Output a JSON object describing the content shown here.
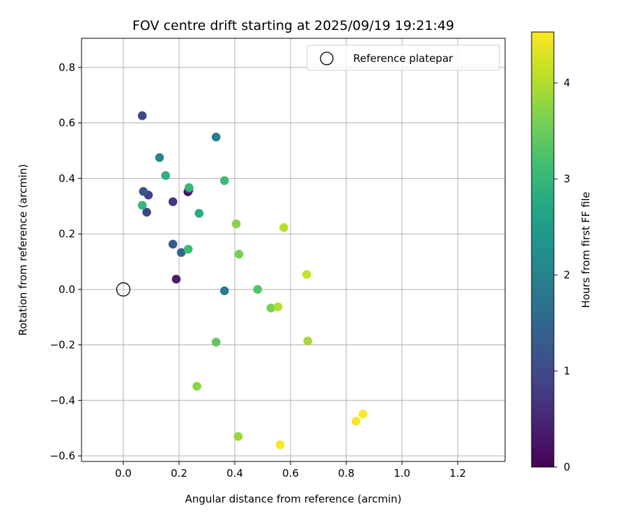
{
  "chart_data": {
    "type": "scatter",
    "title": "FOV centre drift starting at 2025/09/19 19:21:49",
    "xlabel": "Angular distance from reference (arcmin)",
    "ylabel": "Rotation from reference (arcmin)",
    "xlim": [
      -0.15,
      1.37
    ],
    "ylim": [
      -0.62,
      0.905
    ],
    "xticks": [
      0.0,
      0.2,
      0.4,
      0.6,
      0.8,
      1.0,
      1.2
    ],
    "xtick_labels": [
      "0.0",
      "0.2",
      "0.4",
      "0.6",
      "0.8",
      "1.0",
      "1.2"
    ],
    "yticks": [
      -0.6,
      -0.4,
      -0.2,
      0.0,
      0.2,
      0.4,
      0.6,
      0.8
    ],
    "ytick_labels": [
      "−0.6",
      "−0.4",
      "−0.2",
      "0.0",
      "0.2",
      "0.4",
      "0.6",
      "0.8"
    ],
    "grid": true,
    "legend": {
      "position": "top-right",
      "label": "Reference platepar"
    },
    "reference_point": {
      "x": 0.0,
      "y": 0.0
    },
    "colorbar": {
      "label": "Hours from first FF file",
      "range": [
        0,
        4.53
      ],
      "ticks": [
        0,
        1,
        2,
        3,
        4
      ],
      "tick_labels": [
        "0",
        "1",
        "2",
        "3",
        "4"
      ],
      "colormap": "viridis"
    },
    "points": [
      {
        "x": 0.232,
        "y": 0.352,
        "h": 0.0
      },
      {
        "x": 0.19,
        "y": 0.037,
        "h": 0.35
      },
      {
        "x": 0.235,
        "y": 0.358,
        "h": 0.5
      },
      {
        "x": 0.178,
        "y": 0.316,
        "h": 0.75
      },
      {
        "x": 0.09,
        "y": 0.34,
        "h": 0.85
      },
      {
        "x": 0.084,
        "y": 0.278,
        "h": 0.95
      },
      {
        "x": 0.068,
        "y": 0.626,
        "h": 1.0
      },
      {
        "x": 0.072,
        "y": 0.353,
        "h": 1.2
      },
      {
        "x": 0.178,
        "y": 0.163,
        "h": 1.3
      },
      {
        "x": 0.208,
        "y": 0.133,
        "h": 1.5
      },
      {
        "x": 0.363,
        "y": -0.005,
        "h": 1.9
      },
      {
        "x": 0.333,
        "y": 0.549,
        "h": 2.0
      },
      {
        "x": 0.13,
        "y": 0.475,
        "h": 2.05
      },
      {
        "x": 0.272,
        "y": 0.274,
        "h": 2.8
      },
      {
        "x": 0.152,
        "y": 0.41,
        "h": 2.9
      },
      {
        "x": 0.236,
        "y": 0.367,
        "h": 3.0
      },
      {
        "x": 0.068,
        "y": 0.303,
        "h": 3.0
      },
      {
        "x": 0.233,
        "y": 0.145,
        "h": 3.1
      },
      {
        "x": 0.363,
        "y": 0.392,
        "h": 3.05
      },
      {
        "x": 0.482,
        "y": 0.0,
        "h": 3.3
      },
      {
        "x": 0.333,
        "y": -0.19,
        "h": 3.4
      },
      {
        "x": 0.53,
        "y": -0.067,
        "h": 3.6
      },
      {
        "x": 0.415,
        "y": 0.127,
        "h": 3.6
      },
      {
        "x": 0.405,
        "y": 0.236,
        "h": 3.7
      },
      {
        "x": 0.264,
        "y": -0.349,
        "h": 3.75
      },
      {
        "x": 0.412,
        "y": -0.53,
        "h": 3.85
      },
      {
        "x": 0.662,
        "y": -0.186,
        "h": 3.9
      },
      {
        "x": 0.555,
        "y": -0.063,
        "h": 4.0
      },
      {
        "x": 0.576,
        "y": 0.223,
        "h": 4.05
      },
      {
        "x": 0.658,
        "y": 0.054,
        "h": 4.15
      },
      {
        "x": 0.563,
        "y": -0.56,
        "h": 4.5
      },
      {
        "x": 0.835,
        "y": -0.475,
        "h": 4.5
      },
      {
        "x": 0.86,
        "y": -0.45,
        "h": 4.52
      }
    ]
  }
}
